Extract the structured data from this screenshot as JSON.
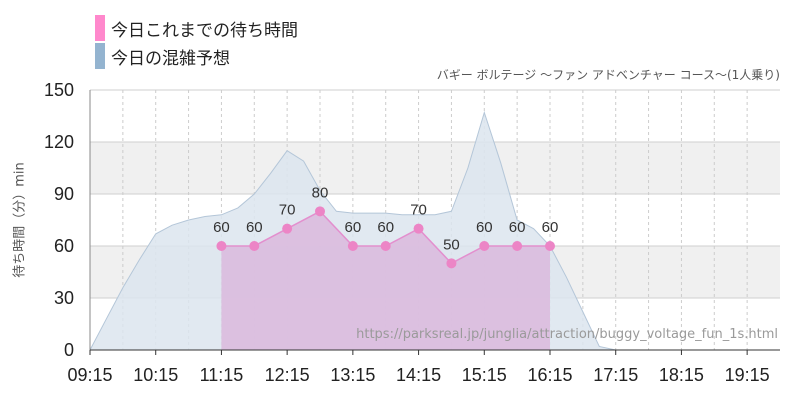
{
  "legend": {
    "actual_label": "今日これまでの待ち時間",
    "forecast_label": "今日の混雑予想"
  },
  "subtitle": "バギー ボルテージ 〜ファン アドベンチャー コース〜(1人乗り)",
  "watermark": "https://parksreal.jp/junglia/attraction/buggy_voltage_fun_1s.html",
  "colors": {
    "actual_fill": "#dab8dd",
    "actual_line": "#e38fce",
    "actual_point": "#ec85c6",
    "forecast_fill": "#dce5ee",
    "forecast_line": "#b4c6d8",
    "legend_actual": "#ff88cc",
    "legend_forecast": "#94b4d0",
    "band": "#f0f0f0"
  },
  "chart_data": {
    "type": "area",
    "title": "",
    "ylabel": "待ち時間（分）min",
    "ylim": [
      0,
      150
    ],
    "yticks": [
      "0",
      "30",
      "60",
      "90",
      "120",
      "150"
    ],
    "xlim": [
      "09:15",
      "19:45"
    ],
    "xticks": [
      "09:15",
      "10:15",
      "11:15",
      "12:15",
      "13:15",
      "14:15",
      "15:15",
      "16:15",
      "17:15",
      "18:15",
      "19:15"
    ],
    "grid": true,
    "series": [
      {
        "name": "今日の混雑予想",
        "x": [
          "09:15",
          "09:30",
          "09:45",
          "10:00",
          "10:15",
          "10:30",
          "10:45",
          "11:00",
          "11:15",
          "11:30",
          "11:45",
          "12:00",
          "12:15",
          "12:30",
          "12:45",
          "13:00",
          "13:15",
          "13:30",
          "13:45",
          "14:00",
          "14:15",
          "14:30",
          "14:45",
          "15:00",
          "15:15",
          "15:30",
          "15:45",
          "16:00",
          "16:15",
          "16:30",
          "16:45",
          "17:00",
          "17:15",
          "17:30",
          "17:45",
          "18:00",
          "18:15",
          "18:30",
          "18:45",
          "19:00",
          "19:15",
          "19:30",
          "19:45"
        ],
        "values": [
          0,
          18,
          36,
          52,
          67,
          72,
          75,
          77,
          78,
          82,
          90,
          102,
          115,
          109,
          92,
          80,
          79,
          79,
          79,
          78,
          78,
          78,
          80,
          105,
          137,
          108,
          75,
          70,
          60,
          42,
          22,
          2,
          0,
          0,
          0,
          0,
          0,
          0,
          0,
          0,
          0,
          0,
          0
        ]
      },
      {
        "name": "今日これまでの待ち時間",
        "x": [
          "11:15",
          "11:45",
          "12:15",
          "12:45",
          "13:15",
          "13:45",
          "14:15",
          "14:45",
          "15:15",
          "15:45",
          "16:15"
        ],
        "values": [
          60,
          60,
          70,
          80,
          60,
          60,
          70,
          50,
          60,
          60,
          60
        ]
      }
    ]
  }
}
